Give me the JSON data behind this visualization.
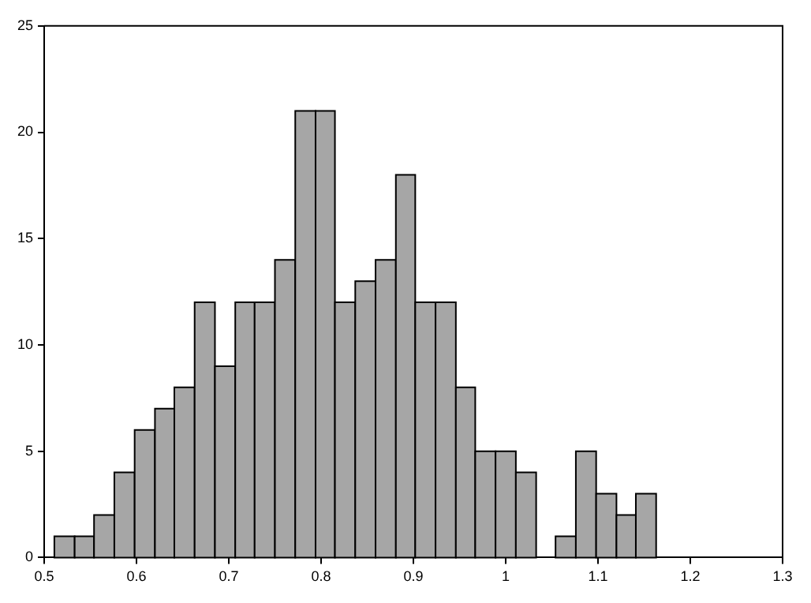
{
  "chart_data": {
    "type": "histogram",
    "bins": [
      0.511,
      0.533,
      0.554,
      0.576,
      0.598,
      0.62,
      0.641,
      0.663,
      0.685,
      0.707,
      0.728,
      0.75,
      0.772,
      0.794,
      0.815,
      0.837,
      0.859,
      0.881,
      0.902,
      0.924,
      0.946,
      0.967,
      0.989,
      1.011,
      1.033,
      1.054,
      1.076,
      1.098,
      1.12,
      1.141,
      1.163
    ],
    "values": [
      1,
      1,
      2,
      4,
      6,
      7,
      8,
      12,
      9,
      12,
      12,
      14,
      21,
      21,
      12,
      13,
      14,
      18,
      12,
      12,
      8,
      5,
      5,
      4,
      0,
      1,
      5,
      3,
      2,
      3
    ],
    "color": "#a6a6a6",
    "xlim": [
      0.5,
      1.3
    ],
    "xticks": [
      0.5,
      0.6,
      0.7,
      0.8,
      0.9,
      1,
      1.1,
      1.2,
      1.3
    ],
    "ylim": [
      0,
      25
    ],
    "yticks": [
      0,
      5,
      10,
      15,
      20,
      25
    ],
    "grid": false,
    "legend": false
  }
}
